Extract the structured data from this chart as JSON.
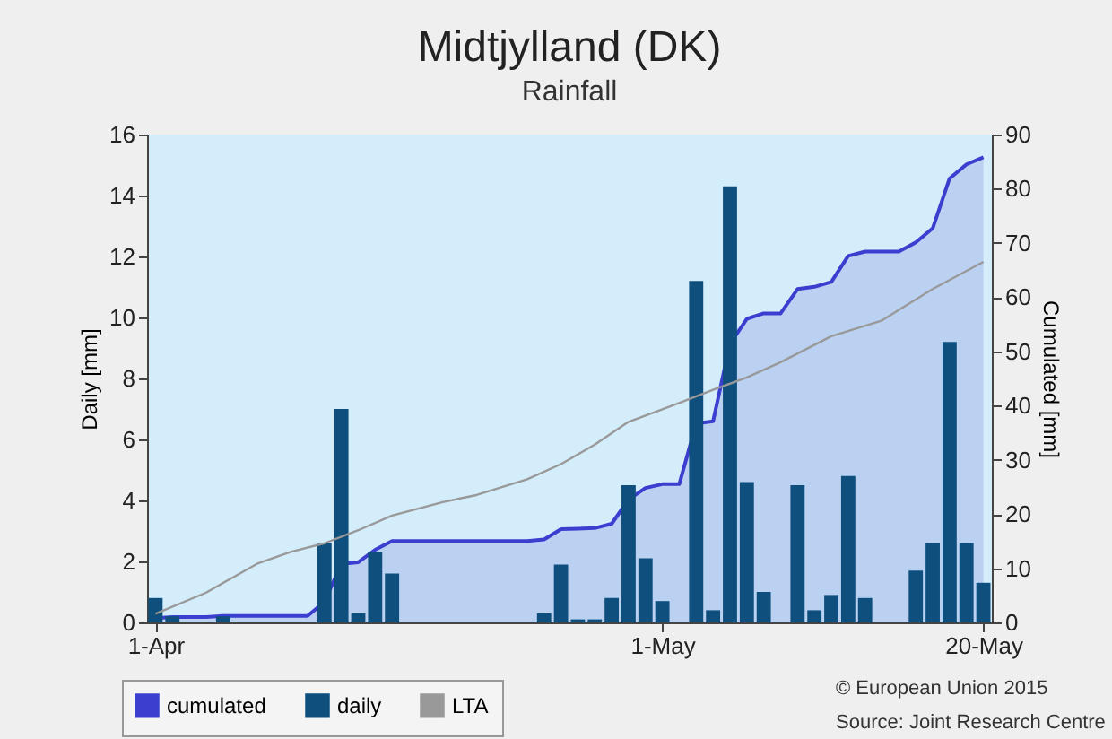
{
  "chart_data": {
    "type": "bar",
    "title": "Midtjylland (DK)",
    "subtitle": "Rainfall",
    "ylabel": "Daily [mm]",
    "y2label": "Cumulated [mm]",
    "xlim": [
      "--03-31T12:00",
      "--05-20T12:00"
    ],
    "xticks": [
      {
        "value": "--04-01",
        "label": "1-Apr"
      },
      {
        "value": "--05-01",
        "label": "1-May"
      },
      {
        "value": "--05-20",
        "label": "20-May"
      }
    ],
    "ylim": [
      0,
      16
    ],
    "yticks": [
      0,
      2,
      4,
      6,
      8,
      10,
      12,
      14,
      16
    ],
    "y2lim": [
      0,
      90
    ],
    "y2ticks": [
      0,
      10,
      20,
      30,
      40,
      50,
      60,
      70,
      80,
      90
    ],
    "legend": "bottom left",
    "series": [
      {
        "name": "cumulated",
        "type": "area",
        "axis": "y2",
        "color": "#3a3fd0",
        "x": [
          "--04-01",
          "--04-02",
          "--04-03",
          "--04-04",
          "--04-05",
          "--04-06",
          "--04-07",
          "--04-08",
          "--04-09",
          "--04-10",
          "--04-11",
          "--04-12",
          "--04-13",
          "--04-14",
          "--04-15",
          "--04-16",
          "--04-17",
          "--04-18",
          "--04-19",
          "--04-20",
          "--04-21",
          "--04-22",
          "--04-23",
          "--04-24",
          "--04-25",
          "--04-26",
          "--04-27",
          "--04-28",
          "--04-29",
          "--04-30",
          "--05-01",
          "--05-02",
          "--05-03",
          "--05-04",
          "--05-05",
          "--05-06",
          "--05-07",
          "--05-08",
          "--05-09",
          "--05-10",
          "--05-11",
          "--05-12",
          "--05-13",
          "--05-14",
          "--05-15",
          "--05-16",
          "--05-17",
          "--05-18",
          "--05-19",
          "--05-20"
        ],
        "values": [
          0.8,
          1.0,
          1.0,
          1.0,
          1.2,
          1.2,
          1.2,
          1.2,
          1.2,
          1.2,
          3.8,
          10.8,
          11.1,
          13.4,
          15.0,
          15.0,
          15.0,
          15.0,
          15.0,
          15.0,
          15.0,
          15.0,
          15.0,
          15.3,
          17.2,
          17.3,
          17.4,
          18.2,
          22.7,
          24.8,
          25.5,
          25.5,
          36.7,
          37.1,
          51.4,
          56.0,
          57.0,
          57.0,
          61.5,
          61.9,
          62.8,
          67.6,
          68.4,
          68.4,
          68.4,
          70.1,
          72.7,
          81.9,
          84.5,
          85.8
        ]
      },
      {
        "name": "daily",
        "color": "#0e4f7d",
        "x": [
          "--04-01",
          "--04-02",
          "--04-05",
          "--04-11",
          "--04-12",
          "--04-13",
          "--04-14",
          "--04-15",
          "--04-24",
          "--04-25",
          "--04-26",
          "--04-27",
          "--04-28",
          "--04-29",
          "--04-30",
          "--05-01",
          "--05-03",
          "--05-04",
          "--05-05",
          "--05-06",
          "--05-07",
          "--05-09",
          "--05-10",
          "--05-11",
          "--05-12",
          "--05-13",
          "--05-16",
          "--05-17",
          "--05-18",
          "--05-19",
          "--05-20"
        ],
        "values": [
          0.8,
          0.2,
          0.2,
          2.6,
          7.0,
          0.3,
          2.3,
          1.6,
          0.3,
          1.9,
          0.1,
          0.1,
          0.8,
          4.5,
          2.1,
          0.7,
          11.2,
          0.4,
          14.3,
          4.6,
          1.0,
          4.5,
          0.4,
          0.9,
          4.8,
          0.8,
          1.7,
          2.6,
          9.2,
          2.6,
          1.3
        ]
      },
      {
        "name": "LTA",
        "type": "line",
        "axis": "y2",
        "color": "#999999",
        "x": [
          "--04-01",
          "--04-04",
          "--04-07",
          "--04-09",
          "--04-11",
          "--04-13",
          "--04-15",
          "--04-18",
          "--04-20",
          "--04-23",
          "--04-25",
          "--04-27",
          "--04-29",
          "--05-01",
          "--05-04",
          "--05-06",
          "--05-08",
          "--05-11",
          "--05-14",
          "--05-17",
          "--05-20"
        ],
        "values": [
          1.6,
          5.5,
          10.8,
          13,
          14.6,
          17,
          19.7,
          22.2,
          23.5,
          26.4,
          29.2,
          32.8,
          37,
          39.3,
          42.9,
          45.2,
          48,
          52.8,
          55.7,
          61.5,
          66.5
        ]
      }
    ],
    "annotations": [
      "© European Union 2015",
      "Source: Joint Research Centre"
    ]
  }
}
